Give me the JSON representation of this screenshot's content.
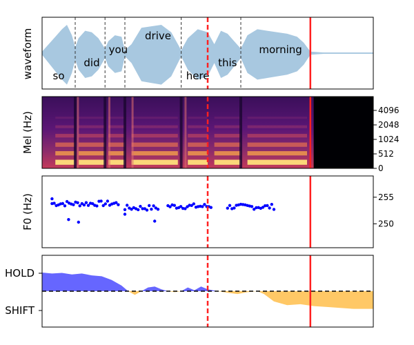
{
  "chart_data": [
    {
      "type": "area",
      "panel": "waveform",
      "ylabel": "waveform",
      "words": [
        {
          "text": "so",
          "t": 0.05,
          "level": "low"
        },
        {
          "text": "did",
          "t": 0.15,
          "level": "mid"
        },
        {
          "text": "you",
          "t": 0.23,
          "level": "high"
        },
        {
          "text": "drive",
          "t": 0.35,
          "level": "top"
        },
        {
          "text": "here",
          "t": 0.47,
          "level": "low"
        },
        {
          "text": "this",
          "t": 0.56,
          "level": "mid"
        },
        {
          "text": "morning",
          "t": 0.72,
          "level": "high"
        }
      ],
      "word_boundaries": [
        0.1,
        0.19,
        0.25,
        0.42,
        0.6
      ],
      "dashed_marker": 0.5,
      "solid_marker": 0.81,
      "envelope": [
        [
          0.0,
          0.05
        ],
        [
          0.02,
          0.3
        ],
        [
          0.04,
          0.55
        ],
        [
          0.06,
          0.8
        ],
        [
          0.075,
          0.95
        ],
        [
          0.09,
          0.6
        ],
        [
          0.1,
          0.2
        ],
        [
          0.11,
          0.5
        ],
        [
          0.13,
          0.75
        ],
        [
          0.15,
          0.7
        ],
        [
          0.17,
          0.5
        ],
        [
          0.19,
          0.15
        ],
        [
          0.2,
          0.4
        ],
        [
          0.22,
          0.6
        ],
        [
          0.24,
          0.55
        ],
        [
          0.25,
          0.1
        ],
        [
          0.27,
          0.3
        ],
        [
          0.3,
          0.85
        ],
        [
          0.33,
          0.9
        ],
        [
          0.36,
          0.95
        ],
        [
          0.39,
          0.7
        ],
        [
          0.41,
          0.3
        ],
        [
          0.42,
          0.1
        ],
        [
          0.44,
          0.5
        ],
        [
          0.47,
          0.8
        ],
        [
          0.5,
          0.7
        ],
        [
          0.52,
          0.3
        ],
        [
          0.54,
          0.75
        ],
        [
          0.56,
          0.65
        ],
        [
          0.58,
          0.4
        ],
        [
          0.6,
          0.15
        ],
        [
          0.62,
          0.6
        ],
        [
          0.65,
          0.8
        ],
        [
          0.68,
          0.75
        ],
        [
          0.71,
          0.7
        ],
        [
          0.74,
          0.65
        ],
        [
          0.77,
          0.55
        ],
        [
          0.79,
          0.35
        ],
        [
          0.81,
          0.05
        ],
        [
          0.85,
          0.02
        ],
        [
          1.0,
          0.02
        ]
      ],
      "color": "#a8c8e0"
    },
    {
      "type": "heatmap",
      "panel": "mel",
      "ylabel": "Mel (Hz)",
      "ytick_labels": [
        "0",
        "512",
        "1024",
        "2048",
        "4096"
      ],
      "speech_end": 0.82,
      "dashed_marker": 0.5,
      "solid_marker": 0.81
    },
    {
      "type": "scatter",
      "panel": "f0",
      "ylabel": "F0 (Hz)",
      "ytick_labels": [
        "250",
        "255"
      ],
      "ylim": [
        245.5,
        259.0
      ],
      "segments": [
        [
          0.03,
          0.23
        ],
        [
          0.25,
          0.35
        ],
        [
          0.38,
          0.51
        ],
        [
          0.56,
          0.7
        ]
      ],
      "mean_values": [
        253.8,
        253.0,
        253.3,
        253.2
      ],
      "outliers": [
        [
          0.08,
          250.8
        ],
        [
          0.11,
          250.3
        ],
        [
          0.25,
          251.8
        ],
        [
          0.34,
          250.5
        ],
        [
          0.03,
          254.7
        ]
      ],
      "dashed_marker": 0.5,
      "solid_marker": 0.81,
      "color": "#0000ff"
    },
    {
      "type": "area",
      "panel": "turn",
      "ytick_labels": [
        "HOLD",
        "SHIFT"
      ],
      "baseline_dashed": true,
      "hold_color": "#6666ff",
      "shift_color": "#ffc866",
      "values": [
        [
          0.0,
          1.0
        ],
        [
          0.03,
          0.95
        ],
        [
          0.06,
          0.98
        ],
        [
          0.09,
          0.9
        ],
        [
          0.12,
          0.95
        ],
        [
          0.15,
          0.85
        ],
        [
          0.18,
          0.8
        ],
        [
          0.21,
          0.6
        ],
        [
          0.24,
          0.3
        ],
        [
          0.26,
          0.0
        ],
        [
          0.28,
          -0.2
        ],
        [
          0.3,
          0.0
        ],
        [
          0.32,
          0.2
        ],
        [
          0.34,
          0.25
        ],
        [
          0.36,
          0.1
        ],
        [
          0.38,
          0.0
        ],
        [
          0.4,
          -0.05
        ],
        [
          0.42,
          0.0
        ],
        [
          0.44,
          0.2
        ],
        [
          0.46,
          0.05
        ],
        [
          0.48,
          0.25
        ],
        [
          0.5,
          0.1
        ],
        [
          0.53,
          0.0
        ],
        [
          0.56,
          -0.08
        ],
        [
          0.59,
          -0.15
        ],
        [
          0.62,
          -0.05
        ],
        [
          0.65,
          0.0
        ],
        [
          0.67,
          -0.15
        ],
        [
          0.7,
          -0.55
        ],
        [
          0.74,
          -0.75
        ],
        [
          0.78,
          -0.7
        ],
        [
          0.82,
          -0.8
        ],
        [
          0.86,
          -0.85
        ],
        [
          0.9,
          -0.9
        ],
        [
          0.94,
          -0.95
        ],
        [
          1.0,
          -0.95
        ]
      ],
      "dashed_marker": 0.5,
      "solid_marker": 0.81
    }
  ]
}
